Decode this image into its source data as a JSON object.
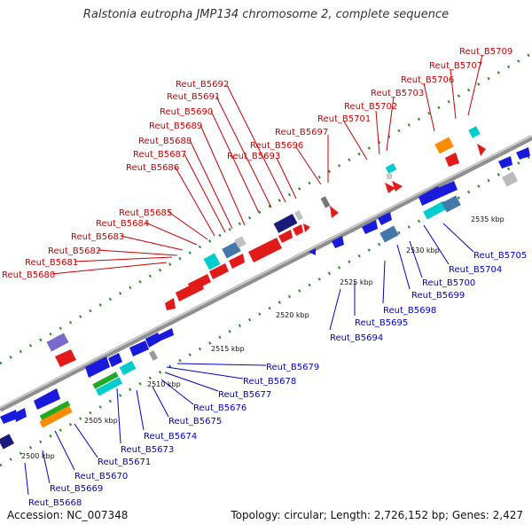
{
  "title": "Ralstonia eutropha JMP134 chromosome 2, complete sequence",
  "footer": {
    "accession": "Accession: NC_007348",
    "summary": "Topology: circular; Length: 2,726,152 bp; Genes: 2,427"
  },
  "colors": {
    "backbone": "#9a9a9a",
    "top_labels": "#cc0000",
    "bottom_labels": "#0000cc",
    "tick": "#2e8b2e"
  },
  "kbp_labels": [
    "2500 kbp",
    "2505 kbp",
    "2510 kbp",
    "2515 kbp",
    "2520 kbp",
    "2525 kbp",
    "2530 kbp",
    "2535 kbp"
  ],
  "top_labels": [
    "Reut_B5680",
    "Reut_B5681",
    "Reut_B5682",
    "Reut_B5683",
    "Reut_B5684",
    "Reut_B5685",
    "Reut_B5686",
    "Reut_B5687",
    "Reut_B5688",
    "Reut_B5689",
    "Reut_B5690",
    "Reut_B5691",
    "Reut_B5692",
    "Reut_B5693",
    "Reut_B5696",
    "Reut_B5697",
    "Reut_B5701",
    "Reut_B5702",
    "Reut_B5703",
    "Reut_B5706",
    "Reut_B5707",
    "Reut_B5709"
  ],
  "bottom_labels": [
    "Reut_B5668",
    "Reut_B5669",
    "Reut_B5670",
    "Reut_B5671",
    "Reut_B5673",
    "Reut_B5674",
    "Reut_B5675",
    "Reut_B5676",
    "Reut_B5677",
    "Reut_B5678",
    "Reut_B5679",
    "Reut_B5694",
    "Reut_B5695",
    "Reut_B5698",
    "Reut_B5699",
    "Reut_B5700",
    "Reut_B5704",
    "Reut_B5705"
  ]
}
